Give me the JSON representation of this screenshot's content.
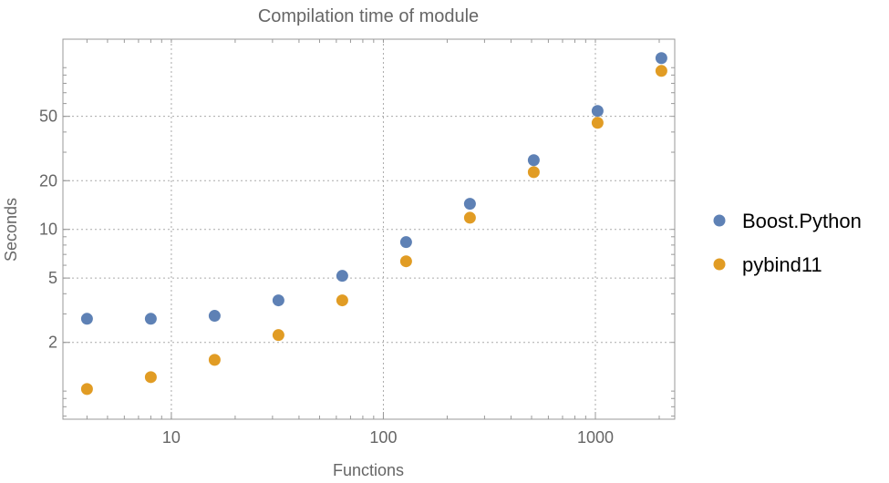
{
  "chart_data": {
    "type": "scatter",
    "title": "Compilation time of module",
    "xlabel": "Functions",
    "ylabel": "Seconds",
    "xscale": "log",
    "yscale": "log",
    "xlim": [
      3.08,
      2367
    ],
    "ylim": [
      0.67,
      150
    ],
    "grid": true,
    "legend_position": "right",
    "x_ticks": [
      10,
      100,
      1000
    ],
    "x_tick_labels": [
      "10",
      "100",
      "1000"
    ],
    "y_ticks": [
      2,
      5,
      10,
      20,
      50
    ],
    "y_tick_labels": [
      "2",
      "5",
      "10",
      "20",
      "50"
    ],
    "x": [
      4,
      8,
      16,
      32,
      64,
      128,
      256,
      512,
      1024,
      2048
    ],
    "series": [
      {
        "name": "Boost.Python",
        "color": "#5E81B5",
        "values": [
          2.8,
          2.8,
          2.92,
          3.64,
          5.16,
          8.34,
          14.4,
          26.8,
          54,
          114.6
        ]
      },
      {
        "name": "pybind11",
        "color": "#E19C24",
        "values": [
          1.03,
          1.22,
          1.56,
          2.22,
          3.64,
          6.35,
          11.8,
          22.6,
          45.6,
          95.5
        ]
      }
    ]
  }
}
